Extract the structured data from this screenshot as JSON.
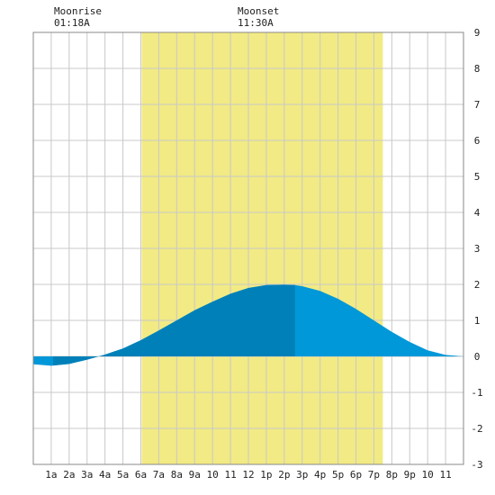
{
  "moon": {
    "moonrise_label": "Moonrise",
    "moonrise_time": "01:18A",
    "moonset_label": "Moonset",
    "moonset_time": "11:30A"
  },
  "colors": {
    "daylight": "#f2ea84",
    "tide_day": "#0080b8",
    "tide_night": "#0098d8",
    "grid": "#c8c8c8",
    "frame": "#888888"
  },
  "chart_data": {
    "type": "area",
    "title": "",
    "xlabel": "",
    "ylabel": "",
    "xlim": [
      0,
      24
    ],
    "ylim": [
      -3,
      9
    ],
    "grid": true,
    "x_ticks": [
      {
        "x": 1,
        "label": "1a"
      },
      {
        "x": 2,
        "label": "2a"
      },
      {
        "x": 3,
        "label": "3a"
      },
      {
        "x": 4,
        "label": "4a"
      },
      {
        "x": 5,
        "label": "5a"
      },
      {
        "x": 6,
        "label": "6a"
      },
      {
        "x": 7,
        "label": "7a"
      },
      {
        "x": 8,
        "label": "8a"
      },
      {
        "x": 9,
        "label": "9a"
      },
      {
        "x": 10,
        "label": "10"
      },
      {
        "x": 11,
        "label": "11"
      },
      {
        "x": 12,
        "label": "12"
      },
      {
        "x": 13,
        "label": "1p"
      },
      {
        "x": 14,
        "label": "2p"
      },
      {
        "x": 15,
        "label": "3p"
      },
      {
        "x": 16,
        "label": "4p"
      },
      {
        "x": 17,
        "label": "5p"
      },
      {
        "x": 18,
        "label": "6p"
      },
      {
        "x": 19,
        "label": "7p"
      },
      {
        "x": 20,
        "label": "8p"
      },
      {
        "x": 21,
        "label": "9p"
      },
      {
        "x": 22,
        "label": "10"
      },
      {
        "x": 23,
        "label": "11"
      }
    ],
    "y_ticks": [
      -3,
      -2,
      -1,
      0,
      1,
      2,
      3,
      4,
      5,
      6,
      7,
      8,
      9
    ],
    "daylight": {
      "start": 6.05,
      "end": 19.5
    },
    "highlight": {
      "start": 1.1,
      "end": 14.6
    },
    "series": [
      {
        "x": [
          0,
          1,
          2,
          3,
          4,
          5,
          6,
          7,
          8,
          9,
          10,
          11,
          12,
          13,
          14,
          14.6,
          15,
          16,
          17,
          18,
          19,
          20,
          21,
          22,
          23,
          24
        ],
        "values": [
          -0.22,
          -0.26,
          -0.21,
          -0.09,
          0.05,
          0.22,
          0.45,
          0.72,
          1.0,
          1.28,
          1.52,
          1.74,
          1.9,
          1.98,
          1.99,
          1.98,
          1.95,
          1.82,
          1.6,
          1.32,
          1.0,
          0.68,
          0.4,
          0.17,
          0.04,
          0.0
        ]
      }
    ]
  }
}
